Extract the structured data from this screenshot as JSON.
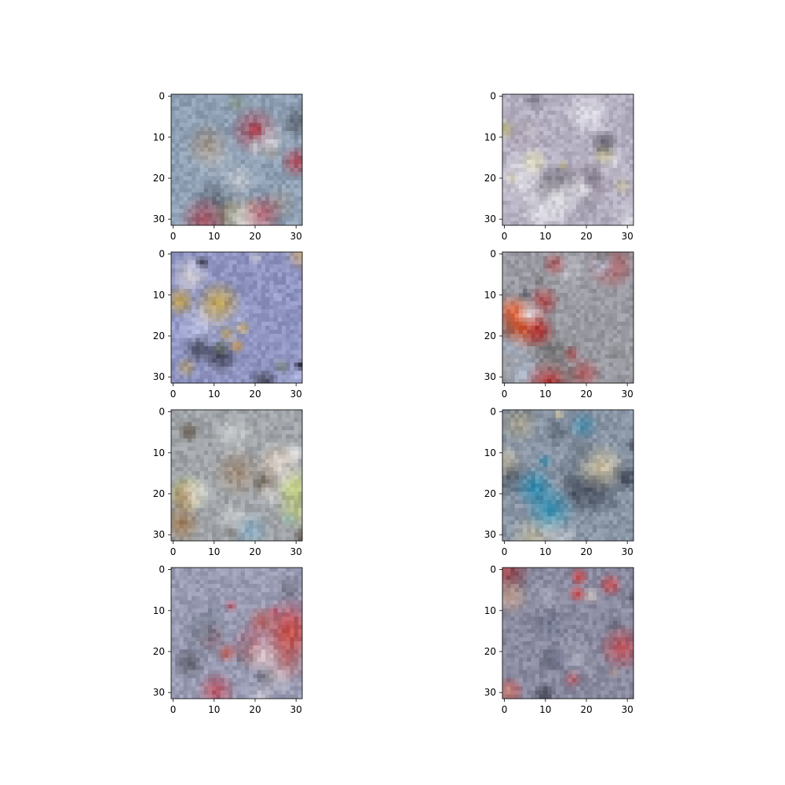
{
  "chart_data": {
    "type": "heatmap",
    "grid_rows": 4,
    "grid_cols": 2,
    "image_size": [
      32,
      32
    ],
    "x_ticks": [
      "0",
      "10",
      "20",
      "30"
    ],
    "y_ticks": [
      "0",
      "10",
      "20",
      "30"
    ],
    "x_tick_values": [
      0,
      10,
      20,
      30
    ],
    "y_tick_values": [
      0,
      10,
      20,
      30
    ],
    "xlim": [
      -0.5,
      31.5
    ],
    "ylim": [
      31.5,
      -0.5
    ],
    "grid": false,
    "panels": [
      {
        "base": "#8fa0b4",
        "accents": [
          "#c0c4cc",
          "#4a4f59",
          "#b02a3a",
          "#e8e4e4",
          "#7c8a6f",
          "#a09080"
        ]
      },
      {
        "base": "#b4afc0",
        "accents": [
          "#e8e8ee",
          "#3e3a44",
          "#c8c08a",
          "#7a7788",
          "#f0f0f4",
          "#9c8f9f"
        ]
      },
      {
        "base": "#8f94c0",
        "accents": [
          "#c8a238",
          "#2a2a36",
          "#e0d8d0",
          "#6a7a50",
          "#d8a040",
          "#b0b8e0"
        ]
      },
      {
        "base": "#9a9aa2",
        "accents": [
          "#e0e0ea",
          "#b02a2a",
          "#2a2a3a",
          "#b8d0e8",
          "#ff4a0a",
          "#707070"
        ]
      },
      {
        "base": "#a0a4a8",
        "accents": [
          "#e8e8e8",
          "#5a4a3a",
          "#a07850",
          "#c8d870",
          "#3a4a5a",
          "#8ab0c8"
        ]
      },
      {
        "base": "#8a96a6",
        "accents": [
          "#2a8ab0",
          "#e8e0d0",
          "#1a2030",
          "#d8c8a0",
          "#f0f0f0",
          "#606a78"
        ]
      },
      {
        "base": "#9a9cb4",
        "accents": [
          "#c04a5a",
          "#e8dce0",
          "#5a5a66",
          "#d04a3a",
          "#b8b0c8",
          "#707888"
        ]
      },
      {
        "base": "#8a8aa0",
        "accents": [
          "#d83a3a",
          "#e8d8d0",
          "#3a3a48",
          "#c0a090",
          "#6a7088",
          "#b0b0c0"
        ]
      }
    ]
  }
}
